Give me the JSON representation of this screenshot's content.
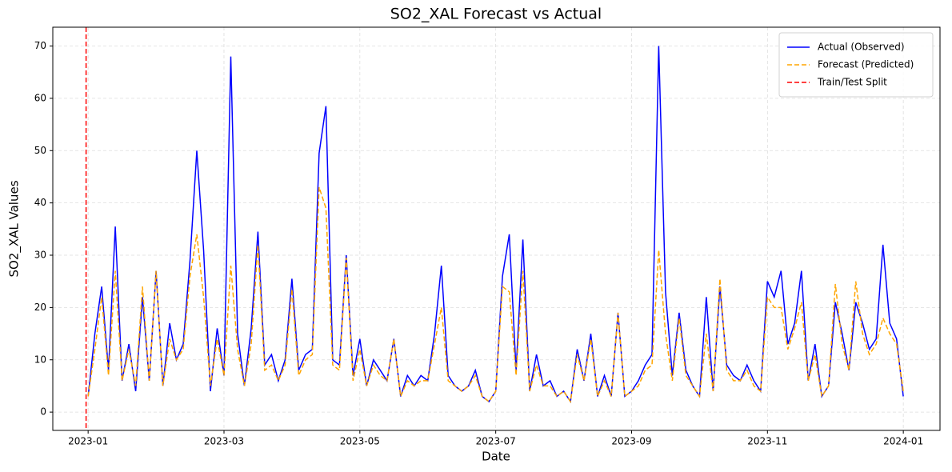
{
  "chart_data": {
    "type": "line",
    "title": "SO2_XAL Forecast vs Actual",
    "xlabel": "Date",
    "ylabel": "SO2_XAL Values",
    "x": [
      0,
      0.1,
      0.2,
      0.3,
      0.4,
      0.5,
      0.6,
      0.7,
      0.8,
      0.9,
      1,
      1.1,
      1.2,
      1.3,
      1.4,
      1.5,
      1.6,
      1.7,
      1.8,
      1.9,
      2,
      2.1,
      2.2,
      2.3,
      2.4,
      2.5,
      2.6,
      2.7,
      2.8,
      2.9,
      3,
      3.1,
      3.2,
      3.3,
      3.4,
      3.5,
      3.6,
      3.7,
      3.8,
      3.9,
      4,
      4.1,
      4.2,
      4.3,
      4.4,
      4.5,
      4.6,
      4.7,
      4.8,
      4.9,
      5,
      5.1,
      5.2,
      5.3,
      5.4,
      5.5,
      5.6,
      5.7,
      5.8,
      5.9,
      6,
      6.1,
      6.2,
      6.3,
      6.4,
      6.5,
      6.6,
      6.7,
      6.8,
      6.9,
      7,
      7.1,
      7.2,
      7.3,
      7.4,
      7.5,
      7.6,
      7.7,
      7.8,
      7.9,
      8,
      8.1,
      8.2,
      8.3,
      8.4,
      8.5,
      8.6,
      8.7,
      8.8,
      8.9,
      9,
      9.1,
      9.2,
      9.3,
      9.4,
      9.5,
      9.6,
      9.7,
      9.8,
      9.9,
      10,
      10.1,
      10.2,
      10.3,
      10.4,
      10.5,
      10.6,
      10.7,
      10.8,
      10.9,
      11,
      11.1,
      11.2,
      11.3,
      11.4,
      11.5,
      11.6,
      11.7,
      11.8,
      11.9,
      12
    ],
    "series": [
      {
        "name": "Actual (Observed)",
        "color": "#0000ff",
        "linestyle": "solid",
        "values": [
          3,
          15,
          24,
          8,
          35.5,
          6,
          13,
          4,
          22,
          6,
          27,
          5,
          17,
          10,
          13,
          29,
          50,
          31,
          4,
          16,
          7,
          68,
          15,
          5,
          16,
          34.5,
          9,
          11,
          6,
          10,
          25.5,
          8,
          11,
          12,
          49.5,
          58.5,
          10,
          9,
          30,
          7,
          14,
          5,
          10,
          8,
          6,
          14,
          3,
          7,
          5,
          7,
          6,
          15,
          28,
          7,
          5,
          4,
          5,
          8,
          3,
          2,
          4,
          26,
          34,
          8,
          33,
          4,
          11,
          5,
          6,
          3,
          4,
          2,
          12,
          6,
          15,
          3,
          7,
          3,
          19,
          3,
          4,
          6,
          9,
          11,
          70,
          23,
          7,
          19,
          8,
          5,
          3,
          22,
          4,
          24,
          9,
          7,
          6,
          9,
          6,
          4,
          25,
          22,
          27,
          13,
          17,
          27,
          6,
          13,
          3,
          5,
          21,
          15,
          8,
          21,
          17,
          12,
          14,
          32,
          17,
          14,
          3
        ]
      },
      {
        "name": "Forecast (Predicted)",
        "color": "#ffa500",
        "linestyle": "dashed",
        "values": [
          3,
          12,
          22,
          7,
          27,
          6,
          12,
          5,
          24,
          6,
          27,
          5,
          14,
          10,
          12,
          26,
          34,
          22,
          5,
          14,
          7,
          28,
          12,
          5,
          13,
          32,
          8,
          9,
          6,
          9,
          23.5,
          7,
          10,
          11,
          43,
          39,
          9,
          8,
          29.5,
          6,
          12,
          5,
          9,
          7,
          6,
          14,
          3,
          6,
          5,
          6,
          6,
          13,
          20,
          6,
          5,
          4,
          5,
          7,
          3,
          2,
          4,
          24,
          23,
          7,
          27,
          4,
          9,
          5,
          5,
          3,
          4,
          2,
          11,
          6,
          14,
          3,
          6,
          3,
          19,
          3,
          4,
          5,
          8,
          9,
          31,
          15,
          6,
          18,
          7,
          5,
          3,
          15,
          4,
          25.5,
          8,
          6,
          6,
          8,
          5,
          4,
          22,
          20,
          20,
          12,
          16,
          21,
          6,
          11,
          3,
          5,
          24.5,
          13,
          8,
          25,
          15,
          11,
          13,
          18,
          15,
          13,
          4
        ]
      }
    ],
    "vlines": [
      {
        "name": "Train/Test Split",
        "color": "#ff0000",
        "linestyle": "dashed",
        "x": -0.03
      }
    ],
    "xlim": [
      -0.52,
      12.54
    ],
    "ylim": [
      -3.5,
      73.6
    ],
    "xticks": [
      {
        "value": 0,
        "label": "2023-01"
      },
      {
        "value": 2,
        "label": "2023-03"
      },
      {
        "value": 4,
        "label": "2023-05"
      },
      {
        "value": 6,
        "label": "2023-07"
      },
      {
        "value": 8,
        "label": "2023-09"
      },
      {
        "value": 10,
        "label": "2023-11"
      },
      {
        "value": 12,
        "label": "2024-01"
      }
    ],
    "yticks": [
      0,
      10,
      20,
      30,
      40,
      50,
      60,
      70
    ],
    "grid": true,
    "legend": "upper right"
  }
}
